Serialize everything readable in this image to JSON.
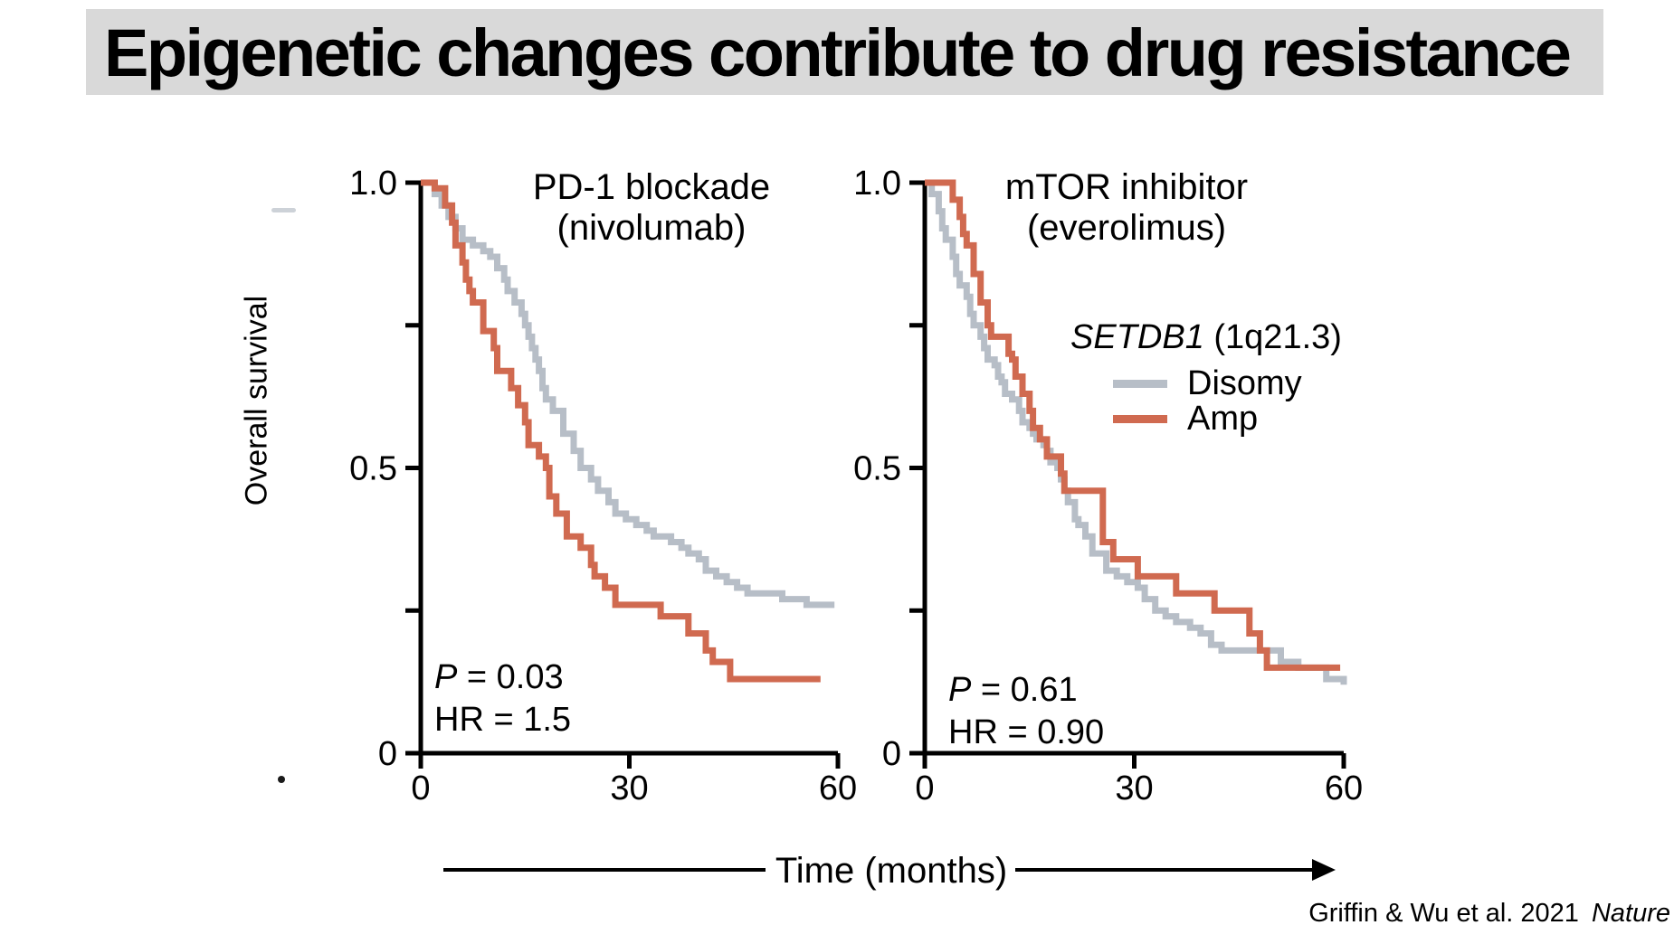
{
  "slide": {
    "title": "Epigenetic changes contribute to drug resistance",
    "y_axis_label": "Overall survival",
    "x_axis_label": "Time (months)",
    "citation": {
      "authors": "Griffin & Wu et al. 2021",
      "journal": "Nature"
    }
  },
  "legend": {
    "gene": "SETDB1",
    "locus": " (1q21.3)",
    "entries": [
      {
        "label": "Disomy",
        "color": "#b7bec7"
      },
      {
        "label": "Amp",
        "color": "#d06a50"
      }
    ]
  },
  "chart_data": [
    {
      "type": "line",
      "subtype": "kaplan-meier-step",
      "title": "PD-1 blockade",
      "subtitle": "(nivolumab)",
      "stats": {
        "p_symbol": "P",
        "p_rest": " = 0.03",
        "hr": "HR = 1.5"
      },
      "xlabel": "Time (months)",
      "ylabel": "Overall survival",
      "xlim": [
        0,
        60
      ],
      "ylim": [
        0,
        1
      ],
      "grid": false,
      "x_ticks": [
        {
          "value": 0,
          "label": "0"
        },
        {
          "value": 30,
          "label": "30"
        },
        {
          "value": 60,
          "label": "60"
        }
      ],
      "y_ticks": [
        {
          "value": 0,
          "label": "0"
        },
        {
          "value": 0.25,
          "label": ""
        },
        {
          "value": 0.5,
          "label": "0.5"
        },
        {
          "value": 0.75,
          "label": ""
        },
        {
          "value": 1,
          "label": "1.0"
        }
      ],
      "series": [
        {
          "name": "Disomy",
          "color": "#b7bec7",
          "points": [
            [
              0,
              1
            ],
            [
              2,
              0.98
            ],
            [
              3,
              0.96
            ],
            [
              4,
              0.94
            ],
            [
              5,
              0.92
            ],
            [
              6,
              0.9
            ],
            [
              7.5,
              0.89
            ],
            [
              9,
              0.88
            ],
            [
              10,
              0.87
            ],
            [
              11,
              0.85
            ],
            [
              12,
              0.83
            ],
            [
              12.5,
              0.81
            ],
            [
              13.5,
              0.79
            ],
            [
              14.5,
              0.77
            ],
            [
              15,
              0.75
            ],
            [
              15.5,
              0.73
            ],
            [
              16,
              0.71
            ],
            [
              16.5,
              0.69
            ],
            [
              17,
              0.67
            ],
            [
              17.5,
              0.64
            ],
            [
              18,
              0.62
            ],
            [
              19,
              0.6
            ],
            [
              20.5,
              0.56
            ],
            [
              22,
              0.53
            ],
            [
              23,
              0.5
            ],
            [
              24.5,
              0.48
            ],
            [
              25.5,
              0.46
            ],
            [
              27,
              0.44
            ],
            [
              28,
              0.42
            ],
            [
              29.5,
              0.41
            ],
            [
              31,
              0.4
            ],
            [
              32.5,
              0.39
            ],
            [
              33.5,
              0.38
            ],
            [
              36,
              0.37
            ],
            [
              37.5,
              0.36
            ],
            [
              38.5,
              0.35
            ],
            [
              40,
              0.34
            ],
            [
              41,
              0.32
            ],
            [
              42.5,
              0.31
            ],
            [
              44,
              0.3
            ],
            [
              45.5,
              0.29
            ],
            [
              47,
              0.28
            ],
            [
              51,
              0.28
            ],
            [
              52,
              0.27
            ],
            [
              55.5,
              0.26
            ],
            [
              59.5,
              0.26
            ]
          ]
        },
        {
          "name": "Amp",
          "color": "#d06a50",
          "points": [
            [
              0,
              1
            ],
            [
              2,
              0.99
            ],
            [
              3.5,
              0.96
            ],
            [
              4.5,
              0.93
            ],
            [
              5,
              0.89
            ],
            [
              6,
              0.86
            ],
            [
              6.5,
              0.83
            ],
            [
              7,
              0.81
            ],
            [
              7.5,
              0.79
            ],
            [
              9,
              0.74
            ],
            [
              10.5,
              0.71
            ],
            [
              11,
              0.67
            ],
            [
              13,
              0.64
            ],
            [
              14,
              0.61
            ],
            [
              15,
              0.58
            ],
            [
              15.5,
              0.54
            ],
            [
              17,
              0.52
            ],
            [
              18,
              0.5
            ],
            [
              18.5,
              0.45
            ],
            [
              19.5,
              0.42
            ],
            [
              21,
              0.38
            ],
            [
              23,
              0.36
            ],
            [
              24.5,
              0.33
            ],
            [
              25,
              0.31
            ],
            [
              26.5,
              0.29
            ],
            [
              28,
              0.26
            ],
            [
              34.5,
              0.24
            ],
            [
              38.5,
              0.21
            ],
            [
              41,
              0.18
            ],
            [
              42,
              0.16
            ],
            [
              44.5,
              0.13
            ],
            [
              57.5,
              0.13
            ]
          ]
        }
      ]
    },
    {
      "type": "line",
      "subtype": "kaplan-meier-step",
      "title": "mTOR inhibitor",
      "subtitle": "(everolimus)",
      "stats": {
        "p_symbol": "P",
        "p_rest": " = 0.61",
        "hr": "HR = 0.90"
      },
      "xlabel": "Time (months)",
      "ylabel": "Overall survival",
      "xlim": [
        0,
        60
      ],
      "ylim": [
        0,
        1
      ],
      "grid": false,
      "x_ticks": [
        {
          "value": 0,
          "label": "0"
        },
        {
          "value": 30,
          "label": "30"
        },
        {
          "value": 60,
          "label": "60"
        }
      ],
      "y_ticks": [
        {
          "value": 0,
          "label": "0"
        },
        {
          "value": 0.25,
          "label": ""
        },
        {
          "value": 0.5,
          "label": "0.5"
        },
        {
          "value": 0.75,
          "label": ""
        },
        {
          "value": 1,
          "label": "1.0"
        }
      ],
      "series": [
        {
          "name": "Disomy",
          "color": "#b7bec7",
          "points": [
            [
              0,
              1
            ],
            [
              1,
              0.98
            ],
            [
              2,
              0.95
            ],
            [
              2.5,
              0.92
            ],
            [
              3,
              0.9
            ],
            [
              4,
              0.87
            ],
            [
              4.5,
              0.84
            ],
            [
              5,
              0.82
            ],
            [
              6,
              0.8
            ],
            [
              6.5,
              0.77
            ],
            [
              7,
              0.75
            ],
            [
              8,
              0.73
            ],
            [
              8.5,
              0.71
            ],
            [
              9,
              0.69
            ],
            [
              10,
              0.68
            ],
            [
              10.5,
              0.66
            ],
            [
              11,
              0.65
            ],
            [
              11.5,
              0.63
            ],
            [
              12.5,
              0.62
            ],
            [
              13.5,
              0.6
            ],
            [
              14,
              0.58
            ],
            [
              15,
              0.57
            ],
            [
              15.5,
              0.56
            ],
            [
              16,
              0.55
            ],
            [
              17,
              0.54
            ],
            [
              17.5,
              0.53
            ],
            [
              18,
              0.51
            ],
            [
              19,
              0.5
            ],
            [
              19.5,
              0.48
            ],
            [
              20,
              0.46
            ],
            [
              20.5,
              0.44
            ],
            [
              21.5,
              0.41
            ],
            [
              22,
              0.4
            ],
            [
              23,
              0.38
            ],
            [
              24,
              0.35
            ],
            [
              26,
              0.32
            ],
            [
              27.5,
              0.31
            ],
            [
              29,
              0.3
            ],
            [
              30.5,
              0.29
            ],
            [
              31.5,
              0.27
            ],
            [
              33,
              0.25
            ],
            [
              34.5,
              0.24
            ],
            [
              36,
              0.23
            ],
            [
              38,
              0.22
            ],
            [
              39.5,
              0.21
            ],
            [
              41,
              0.19
            ],
            [
              42.5,
              0.18
            ],
            [
              46.5,
              0.18
            ],
            [
              51,
              0.16
            ],
            [
              53.5,
              0.15
            ],
            [
              57.5,
              0.13
            ],
            [
              60,
              0.12
            ]
          ]
        },
        {
          "name": "Amp",
          "color": "#d06a50",
          "points": [
            [
              0,
              1
            ],
            [
              4,
              0.97
            ],
            [
              5,
              0.94
            ],
            [
              5.5,
              0.91
            ],
            [
              6,
              0.89
            ],
            [
              7,
              0.84
            ],
            [
              8,
              0.79
            ],
            [
              9,
              0.75
            ],
            [
              9.5,
              0.73
            ],
            [
              12,
              0.7
            ],
            [
              12.5,
              0.69
            ],
            [
              13,
              0.66
            ],
            [
              14,
              0.63
            ],
            [
              15,
              0.6
            ],
            [
              15.5,
              0.57
            ],
            [
              16.5,
              0.55
            ],
            [
              17.5,
              0.52
            ],
            [
              19.5,
              0.49
            ],
            [
              20,
              0.46
            ],
            [
              25.5,
              0.37
            ],
            [
              27,
              0.34
            ],
            [
              30.5,
              0.31
            ],
            [
              36,
              0.28
            ],
            [
              41.5,
              0.25
            ],
            [
              46.5,
              0.21
            ],
            [
              48,
              0.18
            ],
            [
              49,
              0.15
            ],
            [
              59.5,
              0.15
            ]
          ]
        }
      ]
    }
  ]
}
